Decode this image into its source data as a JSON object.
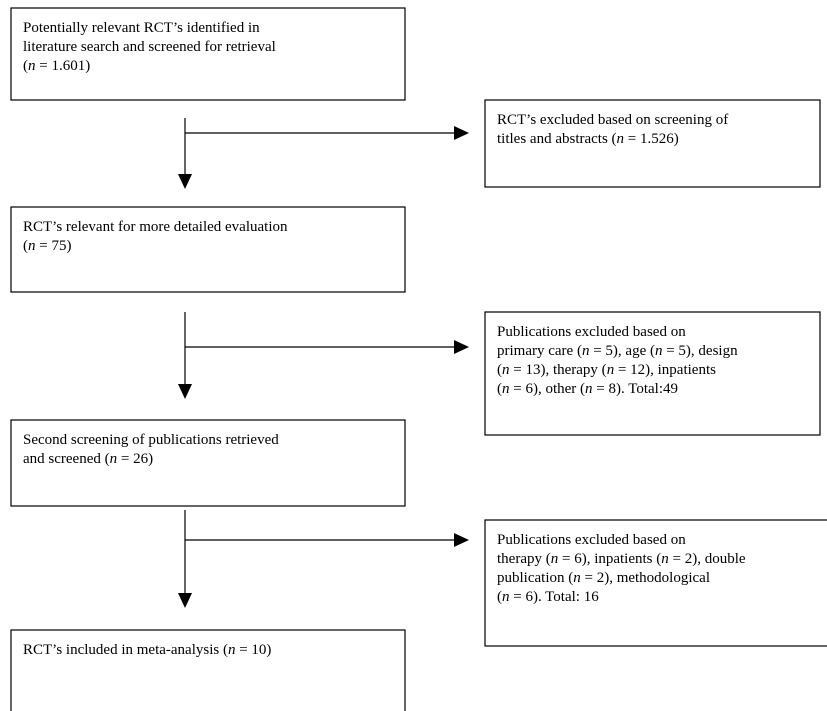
{
  "boxes": [
    {
      "lines": [
        [
          "Potentially relevant RCT’s identified in"
        ],
        [
          "literature search and screened for retrieval"
        ],
        [
          "(",
          "n",
          " = 1.601)"
        ]
      ]
    },
    {
      "lines": [
        [
          "RCT’s excluded based on screening of"
        ],
        [
          "titles and abstracts (",
          "n",
          " = 1.526)"
        ]
      ]
    },
    {
      "lines": [
        [
          "RCT’s relevant for more detailed evaluation"
        ],
        [
          "(",
          "n",
          " = 75)"
        ]
      ]
    },
    {
      "lines": [
        [
          "Publications excluded based on"
        ],
        [
          "primary care (",
          "n",
          " = 5), age (",
          "n",
          " = 5), design"
        ],
        [
          "(",
          "n",
          " = 13), therapy (",
          "n",
          " = 12), inpatients"
        ],
        [
          "(",
          "n",
          " = 6), other (",
          "n",
          " = 8). Total:49"
        ]
      ]
    },
    {
      "lines": [
        [
          "Second screening of publications retrieved"
        ],
        [
          "and screened (",
          "n",
          " = 26)"
        ]
      ]
    },
    {
      "lines": [
        [
          "Publications excluded based on"
        ],
        [
          "therapy (",
          "n",
          " = 6), inpatients (",
          "n",
          " = 2), double"
        ],
        [
          "publication (",
          "n",
          " = 2), methodological"
        ],
        [
          "(",
          "n",
          " = 6). Total: 16"
        ]
      ]
    },
    {
      "lines": [
        [
          "RCT’s included in meta-analysis (",
          "n",
          " = 10)"
        ]
      ]
    }
  ]
}
